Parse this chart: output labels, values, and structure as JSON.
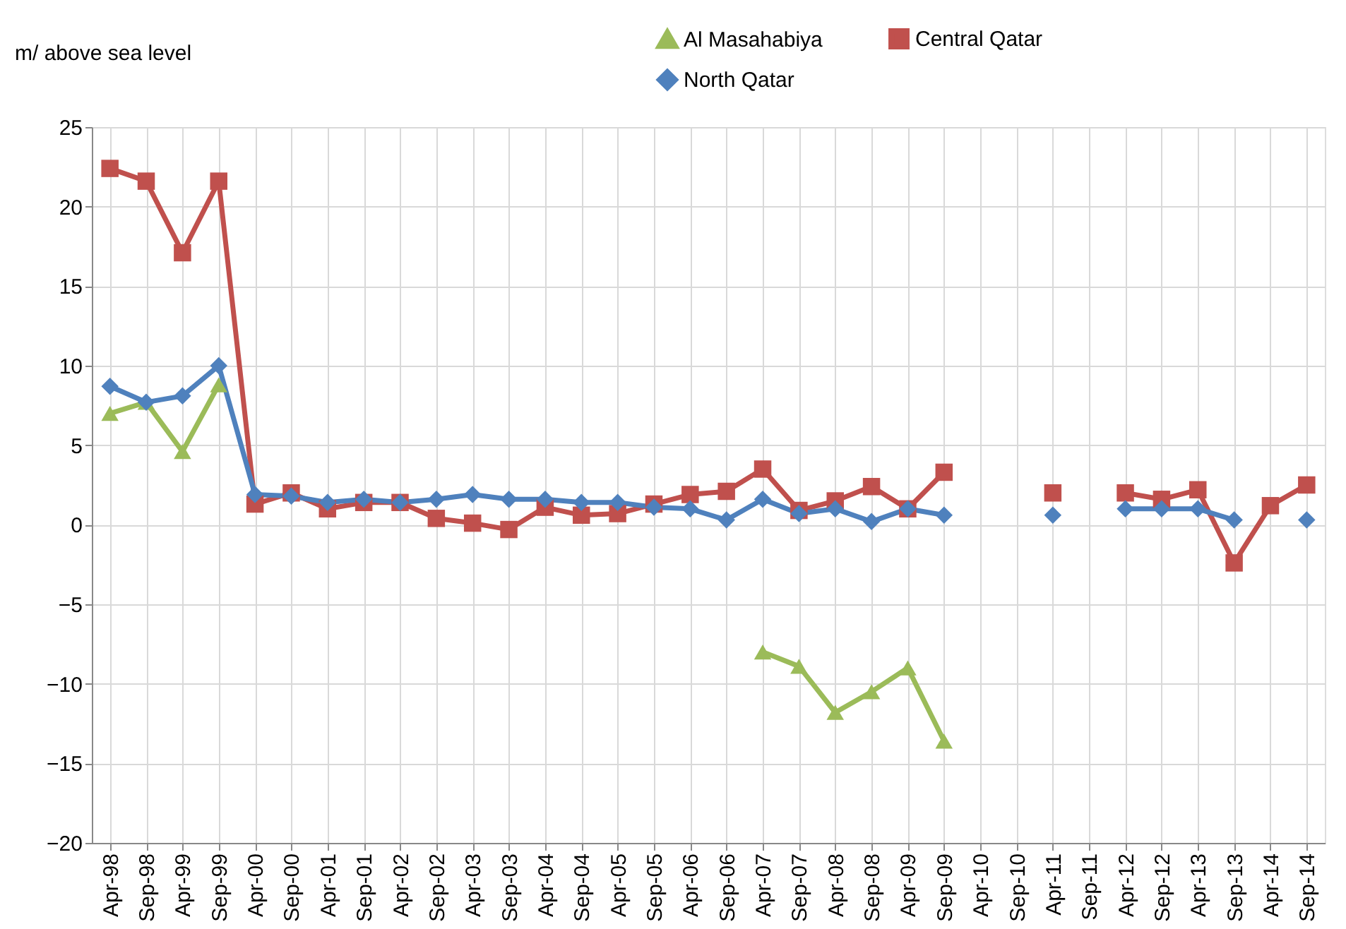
{
  "chart_data": {
    "type": "line",
    "ylabel": "m/ above sea level",
    "categories": [
      "Apr-98",
      "Sep-98",
      "Apr-99",
      "Sep-99",
      "Apr-00",
      "Sep-00",
      "Apr-01",
      "Sep-01",
      "Apr-02",
      "Sep-02",
      "Apr-03",
      "Sep-03",
      "Apr-04",
      "Sep-04",
      "Apr-05",
      "Sep-05",
      "Apr-06",
      "Sep-06",
      "Apr-07",
      "Sep-07",
      "Apr-08",
      "Sep-08",
      "Apr-09",
      "Sep-09",
      "Apr-10",
      "Sep-10",
      "Apr-11",
      "Sep-11",
      "Apr-12",
      "Sep-12",
      "Apr-13",
      "Sep-13",
      "Apr-14",
      "Sep-14"
    ],
    "series": [
      {
        "name": "Al Masahabiya",
        "color": "#9bbb59",
        "marker": "triangle",
        "values": [
          7.0,
          7.7,
          4.6,
          8.8,
          null,
          null,
          null,
          null,
          null,
          null,
          null,
          null,
          null,
          null,
          null,
          null,
          null,
          null,
          -8.0,
          -8.9,
          -11.8,
          -10.5,
          -9.0,
          -13.6,
          null,
          null,
          null,
          null,
          null,
          null,
          null,
          null,
          null,
          null
        ]
      },
      {
        "name": "Central Qatar",
        "color": "#c0504d",
        "marker": "square",
        "values": [
          22.4,
          21.6,
          17.1,
          21.6,
          1.3,
          2.0,
          1.0,
          1.4,
          1.4,
          0.4,
          0.1,
          -0.3,
          1.1,
          0.6,
          0.7,
          1.3,
          1.9,
          2.1,
          3.5,
          0.9,
          1.5,
          2.4,
          1.0,
          3.3,
          null,
          null,
          2.0,
          null,
          2.0,
          1.6,
          2.2,
          -2.4,
          1.2,
          2.5
        ]
      },
      {
        "name": "North Qatar",
        "color": "#4f81bd",
        "marker": "diamond",
        "values": [
          8.7,
          7.7,
          8.1,
          10.0,
          1.9,
          1.8,
          1.4,
          1.6,
          1.4,
          1.6,
          1.9,
          1.6,
          1.6,
          1.4,
          1.4,
          1.1,
          1.0,
          0.3,
          1.6,
          0.7,
          1.0,
          0.2,
          1.0,
          0.6,
          null,
          null,
          0.6,
          null,
          1.0,
          1.0,
          1.0,
          0.3,
          null,
          0.3
        ]
      }
    ],
    "ylim": [
      -20,
      25
    ],
    "yticks": [
      -20,
      -15,
      -10,
      -5,
      0,
      5,
      10,
      15,
      20,
      25
    ],
    "grid": true,
    "legend": "top",
    "line_style": "solid"
  }
}
